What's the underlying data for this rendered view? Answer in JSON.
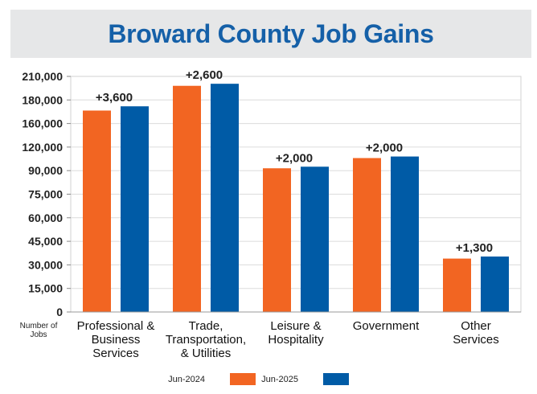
{
  "colors": {
    "series_2024": "#f26522",
    "series_2025": "#005ba6",
    "title": "#1560a8",
    "banner": "#e6e7e8"
  },
  "chart_data": {
    "type": "bar",
    "title": "Broward County Job Gains",
    "ylabel": "Number of Jobs",
    "ylim": [
      0,
      210000
    ],
    "y_ticks": [
      "0",
      "15,000",
      "30,000",
      "45,000",
      "60,000",
      "75,000",
      "90,000",
      "120,000",
      "160,000",
      "180,000",
      "210,000"
    ],
    "categories": [
      [
        "Professional &",
        "Business",
        "Services"
      ],
      [
        "Trade,",
        "Transportation,",
        "& Utilities"
      ],
      [
        "Leisure &",
        "Hospitality"
      ],
      [
        "Government"
      ],
      [
        "Other",
        "Services"
      ]
    ],
    "series": [
      {
        "name": "Jun-2024",
        "values": [
          171000,
          198000,
          93000,
          106000,
          34000
        ]
      },
      {
        "name": "Jun-2025",
        "values": [
          174600,
          200600,
          95000,
          108000,
          35300
        ]
      }
    ],
    "data_labels": [
      "+3,600",
      "+2,600",
      "+2,000",
      "+2,000",
      "+1,300"
    ],
    "legend_position": "bottom-center",
    "grid": true
  }
}
